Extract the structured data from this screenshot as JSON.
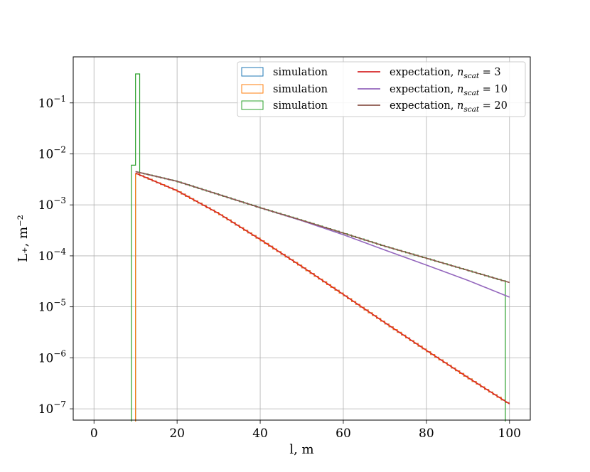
{
  "chart_data": {
    "type": "line",
    "xlabel": "l, m",
    "ylabel": "L₊, m⁻²",
    "y_scale": "log",
    "xlim": [
      -5,
      105
    ],
    "ylim": [
      6e-08,
      0.8
    ],
    "grid": true,
    "legend_position": "top-right",
    "x_ticks": [
      0,
      20,
      40,
      60,
      80,
      100
    ],
    "y_ticks": [
      {
        "value": 1e-07,
        "base": "10",
        "exp": "−7"
      },
      {
        "value": 1e-06,
        "base": "10",
        "exp": "−6"
      },
      {
        "value": 1e-05,
        "base": "10",
        "exp": "−5"
      },
      {
        "value": 0.0001,
        "base": "10",
        "exp": "−4"
      },
      {
        "value": 0.001,
        "base": "10",
        "exp": "−3"
      },
      {
        "value": 0.01,
        "base": "10",
        "exp": "−2"
      },
      {
        "value": 0.1,
        "base": "10",
        "exp": "−1"
      }
    ],
    "histograms": [
      {
        "label": "simulation",
        "color": "#1f77b4",
        "x_range": [
          10,
          100
        ],
        "y_start": 0.0042,
        "y_end": 1.25e-07,
        "bin_width": 1
      },
      {
        "label": "simulation",
        "color": "#ff7f0e",
        "x_range": [
          10,
          100
        ],
        "y_start": 0.0042,
        "y_end": 1.25e-07,
        "bin_width": 1
      },
      {
        "label": "simulation",
        "color": "#2ca02c",
        "x_range": [
          9,
          99
        ],
        "spikes": [
          {
            "x": [
              9,
              10
            ],
            "y": 0.006
          },
          {
            "x": [
              10,
              11
            ],
            "y": 0.37
          }
        ],
        "y_start": 0.0045,
        "y_end": 3.1e-05,
        "bin_width": 1
      }
    ],
    "series": [
      {
        "label": "expectation, ",
        "n_sym": "n",
        "n_sub": "scat",
        "n_val": " = 3",
        "color": "#d62728",
        "x": [
          10,
          20,
          30,
          40,
          50,
          60,
          70,
          80,
          90,
          100
        ],
        "y": [
          0.0042,
          0.0019,
          0.00068,
          0.00021,
          6.2e-05,
          1.75e-05,
          4.9e-06,
          1.4e-06,
          4.1e-07,
          1.25e-07
        ]
      },
      {
        "label": "expectation, ",
        "n_sym": "n",
        "n_sub": "scat",
        "n_val": " = 10",
        "color": "#9467bd",
        "x": [
          10,
          20,
          30,
          40,
          50,
          60,
          70,
          80,
          90,
          100
        ],
        "y": [
          0.0045,
          0.0029,
          0.0016,
          0.00088,
          0.00049,
          0.00026,
          0.00013,
          6.6e-05,
          3.3e-05,
          1.55e-05
        ]
      },
      {
        "label": "expectation, ",
        "n_sym": "n",
        "n_sub": "scat",
        "n_val": " = 20",
        "color": "#8c564b",
        "x": [
          10,
          20,
          30,
          40,
          50,
          60,
          70,
          80,
          90,
          100
        ],
        "y": [
          0.0045,
          0.0029,
          0.0016,
          0.00088,
          0.0005,
          0.00028,
          0.000155,
          9e-05,
          5.2e-05,
          3e-05
        ]
      }
    ]
  }
}
